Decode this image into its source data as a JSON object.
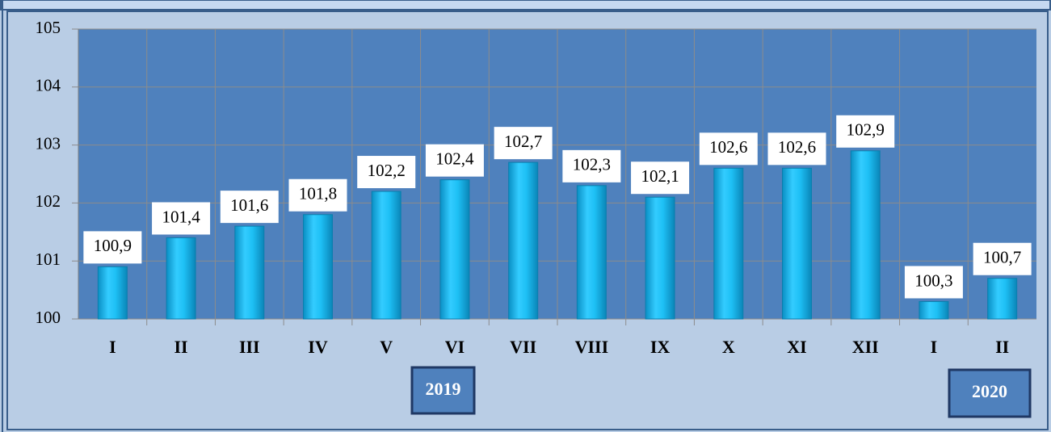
{
  "chart_data": {
    "type": "bar",
    "categories": [
      "I",
      "II",
      "III",
      "IV",
      "V",
      "VI",
      "VII",
      "VIII",
      "IX",
      "X",
      "XI",
      "XII",
      "I",
      "II"
    ],
    "values": [
      100.9,
      101.4,
      101.6,
      101.8,
      102.2,
      102.4,
      102.7,
      102.3,
      102.1,
      102.6,
      102.6,
      102.9,
      100.3,
      100.7
    ],
    "value_labels": [
      "100,9",
      "101,4",
      "101,6",
      "101,8",
      "102,2",
      "102,4",
      "102,7",
      "102,3",
      "102,1",
      "102,6",
      "102,6",
      "102,9",
      "100,3",
      "100,7"
    ],
    "color": "#00b0f0",
    "ylim": [
      100,
      105
    ],
    "yticks": [
      100,
      101,
      102,
      103,
      104,
      105
    ],
    "grid": true,
    "annotations": [
      "2019",
      "2020"
    ]
  }
}
